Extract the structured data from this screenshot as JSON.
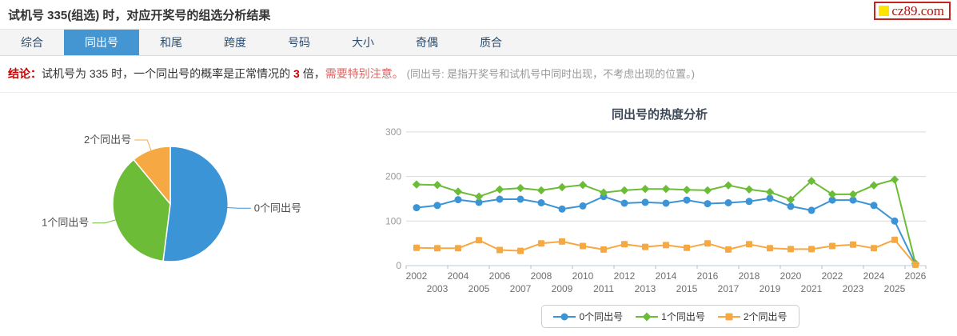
{
  "header": {
    "title": "试机号 335(组选) 时，对应开奖号的组选分析结果",
    "logo_text": "cz89.com"
  },
  "tabs": {
    "items": [
      {
        "label": "综合",
        "active": false
      },
      {
        "label": "同出号",
        "active": true
      },
      {
        "label": "和尾",
        "active": false
      },
      {
        "label": "跨度",
        "active": false
      },
      {
        "label": "号码",
        "active": false
      },
      {
        "label": "大小",
        "active": false
      },
      {
        "label": "奇偶",
        "active": false
      },
      {
        "label": "质合",
        "active": false
      }
    ]
  },
  "conclusion": {
    "prefix": "结论：",
    "seg1": "试机号为 335 时，一个同出号的概率是正常情况的 ",
    "multiplier": "3",
    "seg2": " 倍，",
    "warning": "需要特别注意。",
    "note": "(同出号: 是指开奖号和试机号中同时出现，不考虑出现的位置。)"
  },
  "colors": {
    "accent_blue": "#4496d3",
    "series_blue": "#3b94d6",
    "series_green": "#6cbc37",
    "series_orange": "#f6a843",
    "red": "#cc0000"
  },
  "chart_data": [
    {
      "type": "pie",
      "title": "",
      "slices": [
        {
          "label": "0个同出号",
          "percent": 52,
          "color": "#3b94d6"
        },
        {
          "label": "1个同出号",
          "percent": 37,
          "color": "#6cbc37"
        },
        {
          "label": "2个同出号",
          "percent": 11,
          "color": "#f6a843"
        }
      ],
      "legend_position": "none"
    },
    {
      "type": "line",
      "title": "同出号的热度分析",
      "x": [
        2002,
        2003,
        2004,
        2005,
        2006,
        2007,
        2008,
        2009,
        2010,
        2011,
        2012,
        2013,
        2014,
        2015,
        2016,
        2017,
        2018,
        2019,
        2020,
        2021,
        2022,
        2023,
        2024,
        2025,
        2026
      ],
      "xlabel": "",
      "ylabel": "",
      "ylim": [
        0,
        300
      ],
      "yticks": [
        0,
        100,
        200,
        300
      ],
      "grid": true,
      "legend_position": "bottom",
      "series": [
        {
          "name": "0个同出号",
          "color": "#3b94d6",
          "marker": "circle",
          "values": [
            130,
            135,
            148,
            142,
            149,
            149,
            141,
            127,
            134,
            155,
            140,
            142,
            140,
            147,
            139,
            141,
            144,
            151,
            133,
            124,
            147,
            147,
            135,
            100,
            3
          ]
        },
        {
          "name": "1个同出号",
          "color": "#6cbc37",
          "marker": "diamond",
          "values": [
            182,
            181,
            166,
            155,
            171,
            174,
            169,
            176,
            181,
            164,
            169,
            172,
            172,
            170,
            169,
            180,
            171,
            165,
            148,
            190,
            160,
            160,
            180,
            193,
            5
          ]
        },
        {
          "name": "2个同出号",
          "color": "#f6a843",
          "marker": "square",
          "values": [
            40,
            39,
            39,
            57,
            35,
            33,
            50,
            54,
            44,
            36,
            48,
            42,
            46,
            40,
            50,
            36,
            48,
            39,
            37,
            37,
            44,
            47,
            39,
            58,
            2
          ]
        }
      ]
    }
  ]
}
